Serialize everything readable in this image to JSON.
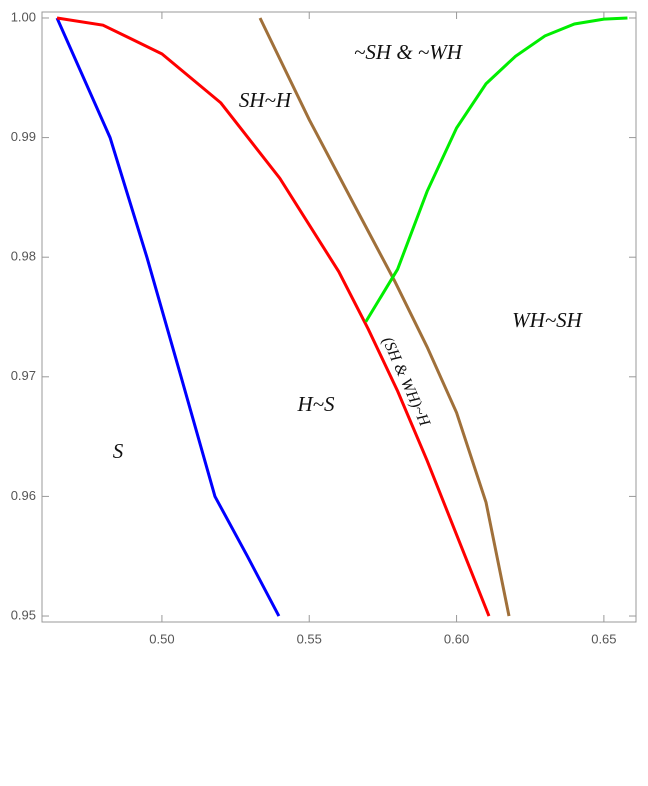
{
  "chart_data": {
    "type": "line",
    "xlim": [
      0.4593,
      0.6609
    ],
    "ylim": [
      0.9495,
      1.0005
    ],
    "xticks": [
      {
        "value": 0.5,
        "label": "0.50"
      },
      {
        "value": 0.55,
        "label": "0.55"
      },
      {
        "value": 0.6,
        "label": "0.60"
      },
      {
        "value": 0.65,
        "label": "0.65"
      }
    ],
    "yticks": [
      {
        "value": 0.95,
        "label": "0.95"
      },
      {
        "value": 0.96,
        "label": "0.96"
      },
      {
        "value": 0.97,
        "label": "0.97"
      },
      {
        "value": 0.98,
        "label": "0.98"
      },
      {
        "value": 0.99,
        "label": "0.99"
      },
      {
        "value": 1.0,
        "label": "1.00"
      }
    ],
    "series": [
      {
        "color": "#0000ff",
        "x": [
          0.4644,
          0.4824,
          0.4949,
          0.5065,
          0.518,
          0.529,
          0.5397
        ],
        "values": [
          1.0,
          0.99,
          0.98,
          0.97,
          0.96,
          0.955,
          0.95
        ]
      },
      {
        "color": "#ff0000",
        "x": [
          0.4644,
          0.48,
          0.5,
          0.52,
          0.54,
          0.56,
          0.57,
          0.58,
          0.59,
          0.6,
          0.611
        ],
        "values": [
          1.0,
          0.9994,
          0.997,
          0.9929,
          0.9866,
          0.9788,
          0.974,
          0.9688,
          0.963,
          0.9568,
          0.95
        ]
      },
      {
        "color": "#a0703a",
        "x": [
          0.5333,
          0.55,
          0.565,
          0.579,
          0.59,
          0.6,
          0.61,
          0.6178
        ],
        "values": [
          1.0,
          0.9915,
          0.9845,
          0.978,
          0.9725,
          0.967,
          0.9595,
          0.95
        ]
      },
      {
        "color": "#00ee00",
        "x": [
          0.5692,
          0.58,
          0.59,
          0.6,
          0.61,
          0.62,
          0.63,
          0.64,
          0.65,
          0.658
        ],
        "values": [
          0.9746,
          0.979,
          0.9855,
          0.9908,
          0.9945,
          0.9968,
          0.9985,
          0.9995,
          0.9999,
          1.0
        ]
      }
    ],
    "annotations": [
      "S",
      "H~S",
      "SH~H",
      "~SH & ~WH",
      "WH~SH",
      "(SH & WH)~H"
    ]
  }
}
